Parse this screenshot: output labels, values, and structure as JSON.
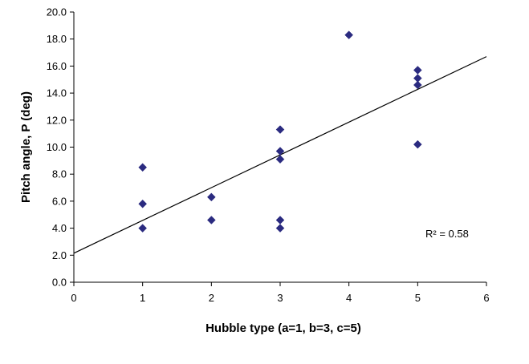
{
  "chart_data": {
    "type": "scatter",
    "title": "",
    "xlabel": "Hubble type (a=1, b=3, c=5)",
    "ylabel": "Pitch angle, P (deg)",
    "xlim": [
      0,
      6
    ],
    "ylim": [
      0,
      20
    ],
    "x_ticks": [
      "0",
      "1",
      "2",
      "3",
      "4",
      "5",
      "6"
    ],
    "y_ticks": [
      "0.0",
      "2.0",
      "4.0",
      "6.0",
      "8.0",
      "10.0",
      "12.0",
      "14.0",
      "16.0",
      "18.0",
      "20.0"
    ],
    "grid": false,
    "legend": "none",
    "marker": "diamond",
    "colors": {
      "marker": "#2b2b80",
      "trendline": "#000000",
      "axis": "#000000"
    },
    "series": [
      {
        "points": [
          {
            "x": 1,
            "y": 8.5
          },
          {
            "x": 1,
            "y": 5.8
          },
          {
            "x": 1,
            "y": 4.0
          },
          {
            "x": 2,
            "y": 6.3
          },
          {
            "x": 2,
            "y": 4.6
          },
          {
            "x": 3,
            "y": 11.3
          },
          {
            "x": 3,
            "y": 9.7
          },
          {
            "x": 3,
            "y": 9.1
          },
          {
            "x": 3,
            "y": 4.6
          },
          {
            "x": 3,
            "y": 4.0
          },
          {
            "x": 4,
            "y": 18.3
          },
          {
            "x": 5,
            "y": 15.7
          },
          {
            "x": 5,
            "y": 15.1
          },
          {
            "x": 5,
            "y": 14.6
          },
          {
            "x": 5,
            "y": 10.2
          }
        ]
      }
    ],
    "trendline": {
      "type": "linear",
      "x_start": 0,
      "y_start": 2.15,
      "x_end": 6,
      "y_end": 16.7
    },
    "annotations": [
      {
        "text": "R² = 0.58"
      }
    ]
  }
}
